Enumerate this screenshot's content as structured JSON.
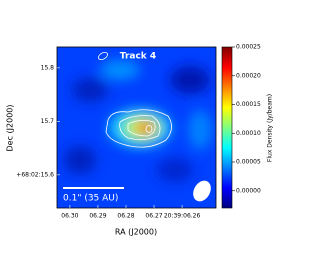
{
  "chart_data": {
    "type": "image",
    "title": "Track 4",
    "xlabel": "RA (J2000)",
    "ylabel": "Dec (J2000)",
    "xlim": [
      6.3046,
      6.2479
    ],
    "xticks": [
      {
        "value": 6.3,
        "label": "06.30"
      },
      {
        "value": 6.29,
        "label": "06.29"
      },
      {
        "value": 6.28,
        "label": "06.28"
      },
      {
        "value": 6.27,
        "label": "06.27"
      },
      {
        "value": 6.26,
        "label": "20:39:06.26"
      }
    ],
    "ylim": [
      15.538,
      15.839
    ],
    "yticks": [
      {
        "value": 15.6,
        "label": "+68:02:15.6"
      },
      15.7,
      15.8
    ],
    "colorbar": {
      "label": "Flux Density (Jy/beam)",
      "lim": [
        -3e-05,
        0.00025
      ],
      "ticks": [
        {
          "value": 0,
          "label": "0.00000"
        },
        5e-05,
        {
          "value": 0.0001,
          "label": "0.00010"
        },
        0.00015,
        {
          "value": 0.0002,
          "label": "0.00020"
        },
        0.00025
      ],
      "colormap": [
        "#00007f",
        "#0000ff",
        "#0080ff",
        "#00ffff",
        "#80ff80",
        "#ffff00",
        "#ff8000",
        "#ff0000",
        "#7f0000"
      ]
    },
    "annotation": "0.1\" (35 AU)"
  }
}
